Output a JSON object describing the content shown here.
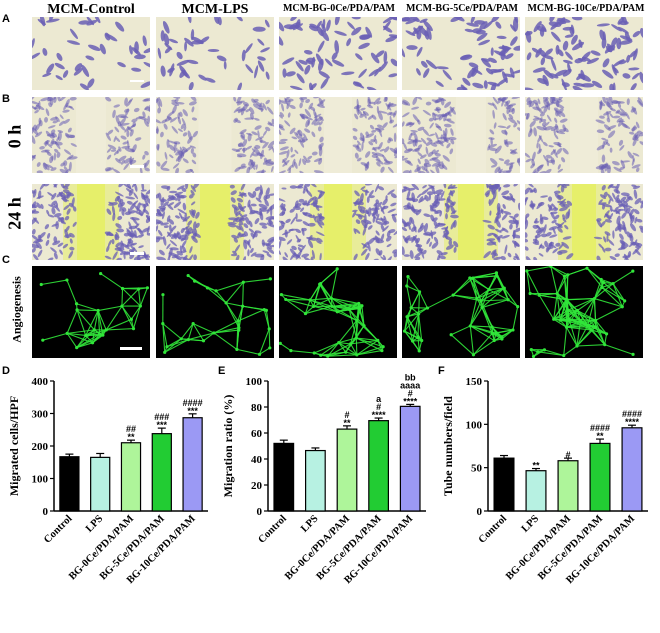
{
  "panel_labels": [
    "A",
    "B",
    "C",
    "D",
    "E",
    "F"
  ],
  "column_titles": [
    "MCM-Control",
    "MCM-LPS",
    "MCM-BG-0Ce/PDA/PAM",
    "MCM-BG-5Ce/PDA/PAM",
    "MCM-BG-10Ce/PDA/PAM"
  ],
  "row_titles": {
    "zero_h": "0 h",
    "twentyfour_h": "24 h",
    "angiogenesis": "Angiogenesis"
  },
  "colors": {
    "crystal_violet": "#6a5fb5",
    "tile_bg": "#ece9d2",
    "wound_yellow": "#e6ef6a",
    "angio_green": "#31e63a",
    "bar_fills": [
      "#000000",
      "#b7f1e2",
      "#aef59a",
      "#22cc33",
      "#9b99f4"
    ]
  },
  "chart_data": [
    {
      "id": "D",
      "type": "bar",
      "categories": [
        "Control",
        "LPS",
        "BG-0Ce/PDA/PAM",
        "BG-5Ce/PDA/PAM",
        "BG-10Ce/PDA/PAM"
      ],
      "values": [
        167,
        165,
        210,
        238,
        287
      ],
      "errors": [
        8,
        12,
        8,
        17,
        12
      ],
      "annotations": [
        [],
        [],
        [
          "**",
          "##"
        ],
        [
          "***",
          "###"
        ],
        [
          "***",
          "####"
        ]
      ],
      "ylabel": "Migrated cells/HPF",
      "ylim": [
        0,
        400
      ],
      "yticks": [
        0,
        100,
        200,
        300,
        400
      ]
    },
    {
      "id": "E",
      "type": "bar",
      "categories": [
        "Control",
        "LPS",
        "BG-0Ce/PDA/PAM",
        "BG-5Ce/PDA/PAM",
        "BG-10Ce/PDA/PAM"
      ],
      "values": [
        52,
        46.5,
        63,
        69.5,
        80.5
      ],
      "errors": [
        2.5,
        2,
        2.5,
        2,
        1.5
      ],
      "annotations": [
        [],
        [],
        [
          "**",
          "#"
        ],
        [
          "****",
          "#",
          "a"
        ],
        [
          "****",
          "#",
          "aaaa",
          "bb"
        ]
      ],
      "ylabel": "Migration ratio (%)",
      "ylim": [
        0,
        100
      ],
      "yticks": [
        0,
        20,
        40,
        60,
        80,
        100
      ]
    },
    {
      "id": "F",
      "type": "bar",
      "categories": [
        "Control",
        "LPS",
        "BG-0Ce/PDA/PAM",
        "BG-5Ce/PDA/PAM",
        "BG-10Ce/PDA/PAM"
      ],
      "values": [
        61,
        46.5,
        58,
        78,
        96
      ],
      "errors": [
        3,
        2.5,
        3,
        5,
        3
      ],
      "annotations": [
        [],
        [
          "**"
        ],
        [
          "#"
        ],
        [
          "**",
          "####"
        ],
        [
          "****",
          "####"
        ]
      ],
      "ylabel": "Tube numbers/field",
      "ylim": [
        0,
        150
      ],
      "yticks": [
        0,
        50,
        100,
        150
      ]
    }
  ]
}
